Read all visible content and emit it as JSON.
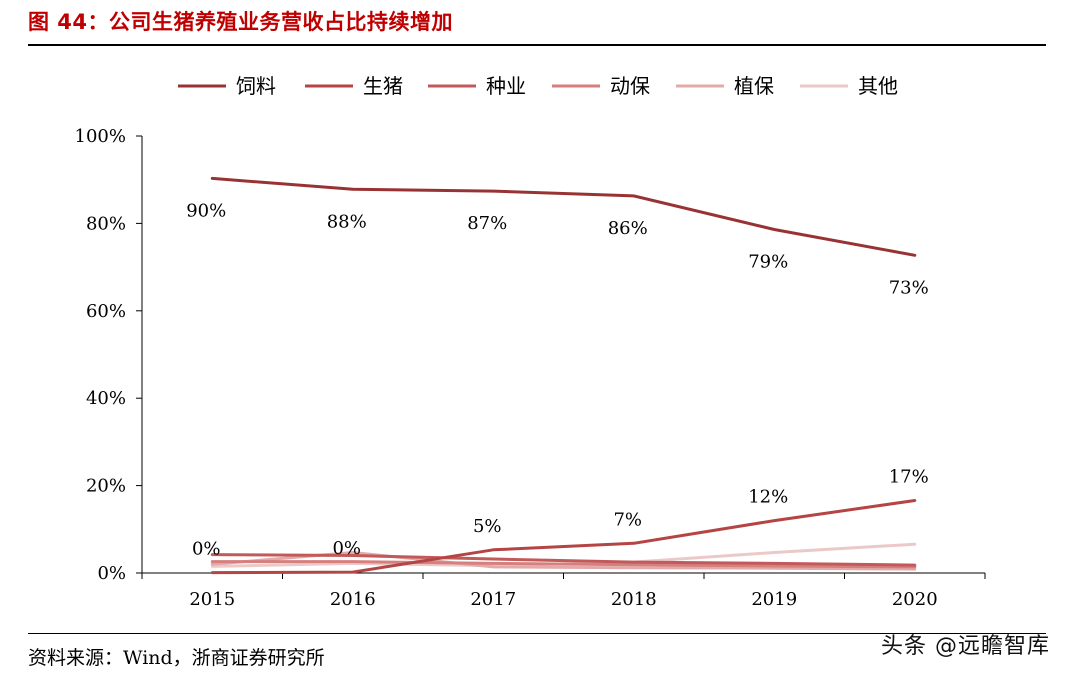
{
  "header": {
    "title": "图 44：公司生猪养殖业务营收占比持续增加"
  },
  "footer": {
    "source": "资料来源：Wind，浙商证券研究所",
    "watermark": "头条 @远瞻智库"
  },
  "chart_data": {
    "type": "line",
    "title": "",
    "xlabel": "",
    "ylabel": "",
    "categories": [
      "2015",
      "2016",
      "2017",
      "2018",
      "2019",
      "2020"
    ],
    "ylim": [
      0,
      100
    ],
    "y_ticks": [
      "0%",
      "20%",
      "40%",
      "60%",
      "80%",
      "100%"
    ],
    "grid": false,
    "legend_position": "top",
    "series": [
      {
        "name": "饲料",
        "values": [
          90.3,
          87.8,
          87.4,
          86.3,
          78.6,
          72.7
        ],
        "color": "#993333",
        "data_labels": [
          "90%",
          "88%",
          "87%",
          "86%",
          "79%",
          "73%"
        ]
      },
      {
        "name": "生猪",
        "values": [
          0.1,
          0.2,
          5.3,
          6.8,
          12.0,
          16.6
        ],
        "color": "#b54545",
        "data_labels": [
          "0%",
          "0%",
          "5%",
          "7%",
          "12%",
          "17%"
        ]
      },
      {
        "name": "种业",
        "values": [
          4.2,
          4.0,
          3.2,
          2.5,
          2.2,
          1.8
        ],
        "color": "#c25a5a"
      },
      {
        "name": "动保",
        "values": [
          2.6,
          2.6,
          2.2,
          1.9,
          1.6,
          1.4
        ],
        "color": "#d57f7f"
      },
      {
        "name": "植保",
        "values": [
          2.0,
          4.7,
          1.4,
          1.2,
          1.1,
          0.9
        ],
        "color": "#e3aaaa"
      },
      {
        "name": "其他",
        "values": [
          1.5,
          2.2,
          1.7,
          2.5,
          4.7,
          6.6
        ],
        "color": "#ecc9c9"
      }
    ]
  }
}
